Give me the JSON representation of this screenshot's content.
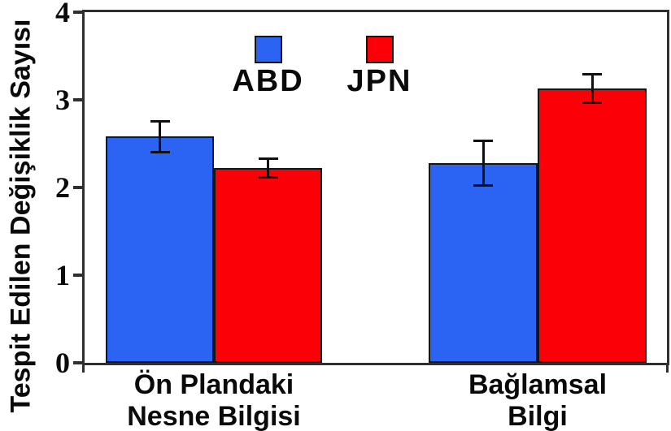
{
  "chart_data": {
    "type": "bar",
    "title": "",
    "xlabel": "",
    "ylabel": "Tespit Edilen Değişiklik Sayısı",
    "categories": [
      "Ön Plandaki\nNesne Bilgisi",
      "Bağlamsal\nBilgi"
    ],
    "series": [
      {
        "name": "ABD",
        "color": "#2b63f3",
        "values": [
          2.58,
          2.28
        ],
        "errors": [
          0.18,
          0.26
        ]
      },
      {
        "name": "JPN",
        "color": "#fb0107",
        "values": [
          2.22,
          3.13
        ],
        "errors": [
          0.11,
          0.17
        ]
      }
    ],
    "ylim": [
      0,
      4
    ],
    "yticks": [
      0,
      1,
      2,
      3,
      4
    ],
    "grid": false,
    "legend_position": "top-center-inside",
    "error_bars": true,
    "axis_color": "#2f2f2f",
    "bar_edge_color": "#151515",
    "background_color": "#ffffff"
  }
}
